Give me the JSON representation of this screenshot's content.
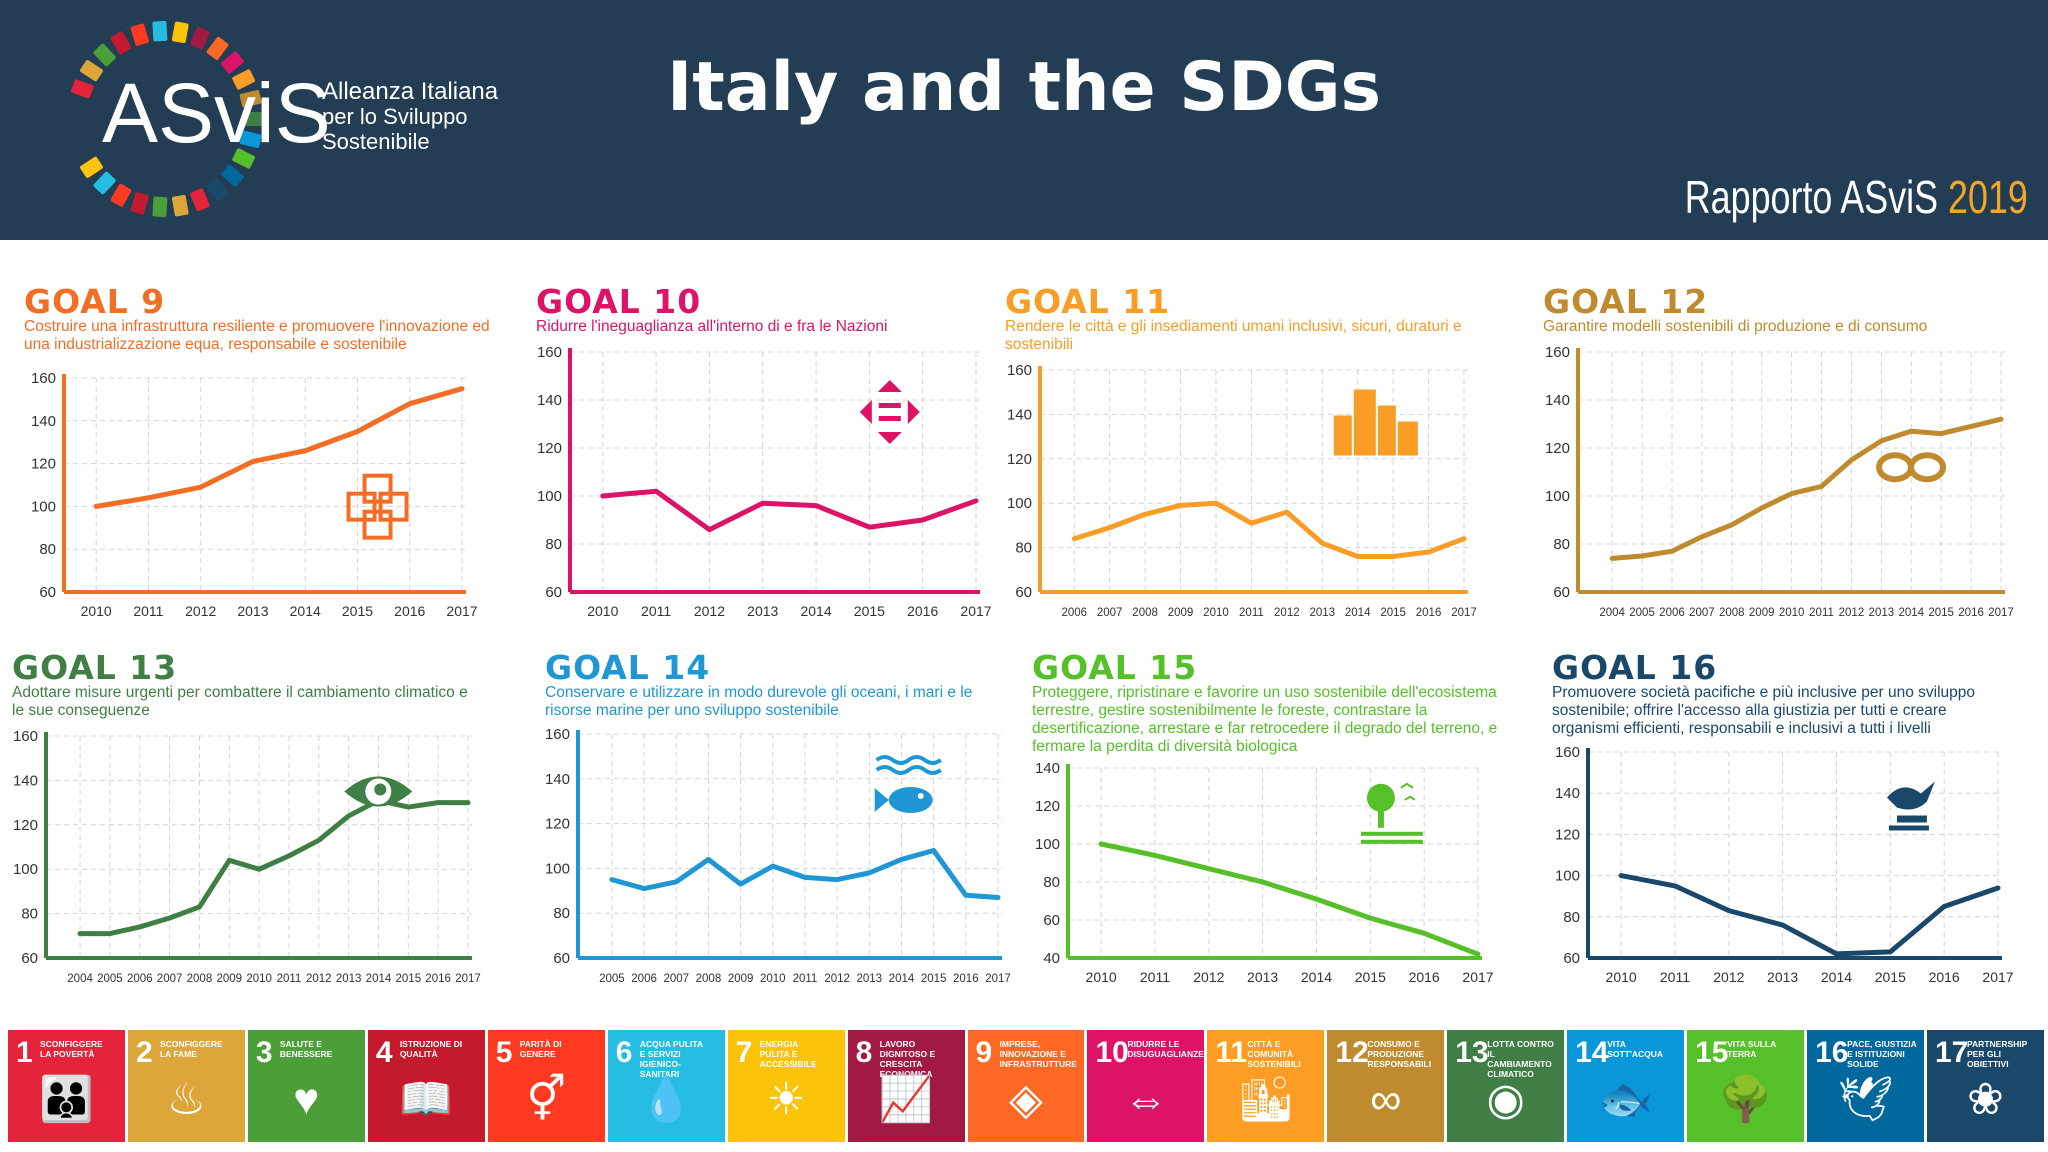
{
  "header": {
    "title": "Italy and the SDGs",
    "logo_text": "ASviS",
    "logo_tagline": [
      "Alleanza Italiana",
      "per lo Sviluppo",
      "Sostenibile"
    ],
    "report_label": "Rapporto ASviS",
    "report_year": "2019"
  },
  "colors": {
    "header_bg": "#223d54",
    "goal9": "#f36d25",
    "goal10": "#dd1367",
    "goal11": "#f99d26",
    "goal12": "#bf8b2e",
    "goal13": "#3f7e44",
    "goal14": "#1f97d4",
    "goal15": "#56c02b",
    "goal16": "#19486a"
  },
  "panels": [
    {
      "title": "GOAL 9",
      "desc": "Costruire una infrastruttura resiliente e promuovere l'innovazione ed una industrializzazione equa, responsabile e sostenibile",
      "icon": "cubes-icon"
    },
    {
      "title": "GOAL 10",
      "desc": "Ridurre l'ineguaglianza all'interno di e fra le Nazioni",
      "icon": "equality-arrows-icon"
    },
    {
      "title": "GOAL 11",
      "desc": "Rendere le città e gli insediamenti umani inclusivi, sicuri, duraturi e sostenibili",
      "icon": "city-buildings-icon"
    },
    {
      "title": "GOAL 12",
      "desc": "Garantire modelli sostenibili di produzione e di consumo",
      "icon": "infinity-icon"
    },
    {
      "title": "GOAL 13",
      "desc": "Adottare misure urgenti per combattere il cambiamento climatico e le sue conseguenze",
      "icon": "earth-eye-icon"
    },
    {
      "title": "GOAL 14",
      "desc": "Conservare e utilizzare in modo durevole gli oceani, i mari e le risorse marine per uno sviluppo sostenibile",
      "icon": "fish-waves-icon"
    },
    {
      "title": "GOAL 15",
      "desc": "Proteggere, ripristinare e favorire un uso sostenibile dell'ecosistema terrestre, gestire sostenibilmente le foreste, contrastare la desertificazione, arrestare e far retrocedere il degrado del terreno, e fermare la perdita di diversità biologica",
      "icon": "tree-birds-icon"
    },
    {
      "title": "GOAL 16",
      "desc": "Promuovere società pacifiche e più inclusive per uno sviluppo sostenibile; offrire l'accesso alla giustizia per tutti e creare organismi efficienti, responsabili e inclusivi a tutti i livelli",
      "icon": "dove-gavel-icon"
    }
  ],
  "chart_data": [
    {
      "type": "line",
      "title": "GOAL 9",
      "x": [
        "2010",
        "2011",
        "2012",
        "2013",
        "2014",
        "2015",
        "2016",
        "2017"
      ],
      "yticks": [
        60,
        80,
        100,
        120,
        140,
        160
      ],
      "ylim": [
        60,
        160
      ],
      "values": [
        100,
        104,
        109,
        121,
        126,
        135,
        148,
        155
      ],
      "grid": true
    },
    {
      "type": "line",
      "title": "GOAL 10",
      "x": [
        "2010",
        "2011",
        "2012",
        "2013",
        "2014",
        "2015",
        "2016",
        "2017"
      ],
      "yticks": [
        60,
        80,
        100,
        120,
        140,
        160
      ],
      "ylim": [
        60,
        160
      ],
      "values": [
        100,
        102,
        86,
        97,
        96,
        87,
        90,
        98
      ],
      "grid": true
    },
    {
      "type": "line",
      "title": "GOAL 11",
      "x": [
        "2006",
        "2007",
        "2008",
        "2009",
        "2010",
        "2011",
        "2012",
        "2013",
        "2014",
        "2015",
        "2016",
        "2017"
      ],
      "yticks": [
        60,
        80,
        100,
        120,
        140,
        160
      ],
      "ylim": [
        60,
        160
      ],
      "values": [
        84,
        89,
        95,
        99,
        100,
        91,
        96,
        82,
        76,
        76,
        78,
        84
      ],
      "grid": true
    },
    {
      "type": "line",
      "title": "GOAL 12",
      "x": [
        "2004",
        "2005",
        "2006",
        "2007",
        "2008",
        "2009",
        "2010",
        "2011",
        "2012",
        "2013",
        "2014",
        "2015",
        "2016",
        "2017"
      ],
      "yticks": [
        60,
        80,
        100,
        120,
        140,
        160
      ],
      "ylim": [
        60,
        160
      ],
      "values": [
        74,
        75,
        77,
        83,
        88,
        95,
        101,
        104,
        115,
        123,
        127,
        126,
        129,
        132
      ],
      "grid": true
    },
    {
      "type": "line",
      "title": "GOAL 13",
      "x": [
        "2004",
        "2005",
        "2006",
        "2007",
        "2008",
        "2009",
        "2010",
        "2011",
        "2012",
        "2013",
        "2014",
        "2015",
        "2016",
        "2017"
      ],
      "yticks": [
        60,
        80,
        100,
        120,
        140,
        160
      ],
      "ylim": [
        60,
        160
      ],
      "values": [
        71,
        71,
        74,
        78,
        83,
        104,
        100,
        106,
        113,
        124,
        131,
        128,
        130,
        130
      ],
      "grid": true
    },
    {
      "type": "line",
      "title": "GOAL 14",
      "x": [
        "2005",
        "2006",
        "2007",
        "2008",
        "2009",
        "2010",
        "2011",
        "2012",
        "2013",
        "2014",
        "2015",
        "2016",
        "2017"
      ],
      "yticks": [
        60,
        80,
        100,
        120,
        140,
        160
      ],
      "ylim": [
        60,
        160
      ],
      "values": [
        95,
        91,
        94,
        104,
        93,
        101,
        96,
        95,
        98,
        104,
        108,
        88,
        87
      ],
      "grid": true
    },
    {
      "type": "line",
      "title": "GOAL 15",
      "x": [
        "2010",
        "2011",
        "2012",
        "2013",
        "2014",
        "2015",
        "2016",
        "2017"
      ],
      "yticks": [
        40,
        60,
        80,
        100,
        120,
        140
      ],
      "ylim": [
        40,
        140
      ],
      "values": [
        100,
        94,
        87,
        80,
        71,
        61,
        53,
        42
      ],
      "grid": true
    },
    {
      "type": "line",
      "title": "GOAL 16",
      "x": [
        "2010",
        "2011",
        "2012",
        "2013",
        "2014",
        "2015",
        "2016",
        "2017"
      ],
      "yticks": [
        60,
        80,
        100,
        120,
        140,
        160
      ],
      "ylim": [
        60,
        160
      ],
      "values": [
        100,
        95,
        83,
        76,
        62,
        63,
        85,
        94
      ],
      "grid": true
    }
  ],
  "sdg_tiles": [
    {
      "num": "1",
      "name": "Sconfiggere la povertà",
      "color": "#e5243b",
      "icon": "family-icon",
      "glyph": "👪"
    },
    {
      "num": "2",
      "name": "Sconfiggere la fame",
      "color": "#dda63a",
      "icon": "bowl-icon",
      "glyph": "♨"
    },
    {
      "num": "3",
      "name": "Salute e benessere",
      "color": "#4c9f38",
      "icon": "heartbeat-icon",
      "glyph": "♥"
    },
    {
      "num": "4",
      "name": "Istruzione di qualità",
      "color": "#c5192d",
      "icon": "book-icon",
      "glyph": "📖"
    },
    {
      "num": "5",
      "name": "Parità di genere",
      "color": "#ff3a21",
      "icon": "gender-icon",
      "glyph": "⚥"
    },
    {
      "num": "6",
      "name": "Acqua pulita e servizi igienico-sanitari",
      "color": "#26bde2",
      "icon": "water-icon",
      "glyph": "💧"
    },
    {
      "num": "7",
      "name": "Energia pulita e accessibile",
      "color": "#fcc30b",
      "icon": "sun-icon",
      "glyph": "☀"
    },
    {
      "num": "8",
      "name": "Lavoro dignitoso e crescita economica",
      "color": "#a21942",
      "icon": "growth-chart-icon",
      "glyph": "📈"
    },
    {
      "num": "9",
      "name": "Imprese, innovazione e infrastrutture",
      "color": "#fd6925",
      "icon": "cubes-icon",
      "glyph": "◈"
    },
    {
      "num": "10",
      "name": "Ridurre le disuguaglianze",
      "color": "#dd1367",
      "icon": "equality-icon",
      "glyph": "⇔"
    },
    {
      "num": "11",
      "name": "Città e comunità sostenibili",
      "color": "#fd9d24",
      "icon": "city-icon",
      "glyph": "🏙"
    },
    {
      "num": "12",
      "name": "Consumo e produzione responsabili",
      "color": "#bf8b2e",
      "icon": "infinity-icon",
      "glyph": "∞"
    },
    {
      "num": "13",
      "name": "Lotta contro il cambiamento climatico",
      "color": "#3f7e44",
      "icon": "earth-eye-icon",
      "glyph": "◉"
    },
    {
      "num": "14",
      "name": "Vita sott'acqua",
      "color": "#0a97d9",
      "icon": "fish-icon",
      "glyph": "🐟"
    },
    {
      "num": "15",
      "name": "Vita sulla terra",
      "color": "#56c02b",
      "icon": "tree-icon",
      "glyph": "🌳"
    },
    {
      "num": "16",
      "name": "Pace, giustizia e istituzioni solide",
      "color": "#00689d",
      "icon": "dove-icon",
      "glyph": "🕊"
    },
    {
      "num": "17",
      "name": "Partnership per gli obiettivi",
      "color": "#19486a",
      "icon": "rings-icon",
      "glyph": "❀"
    }
  ]
}
